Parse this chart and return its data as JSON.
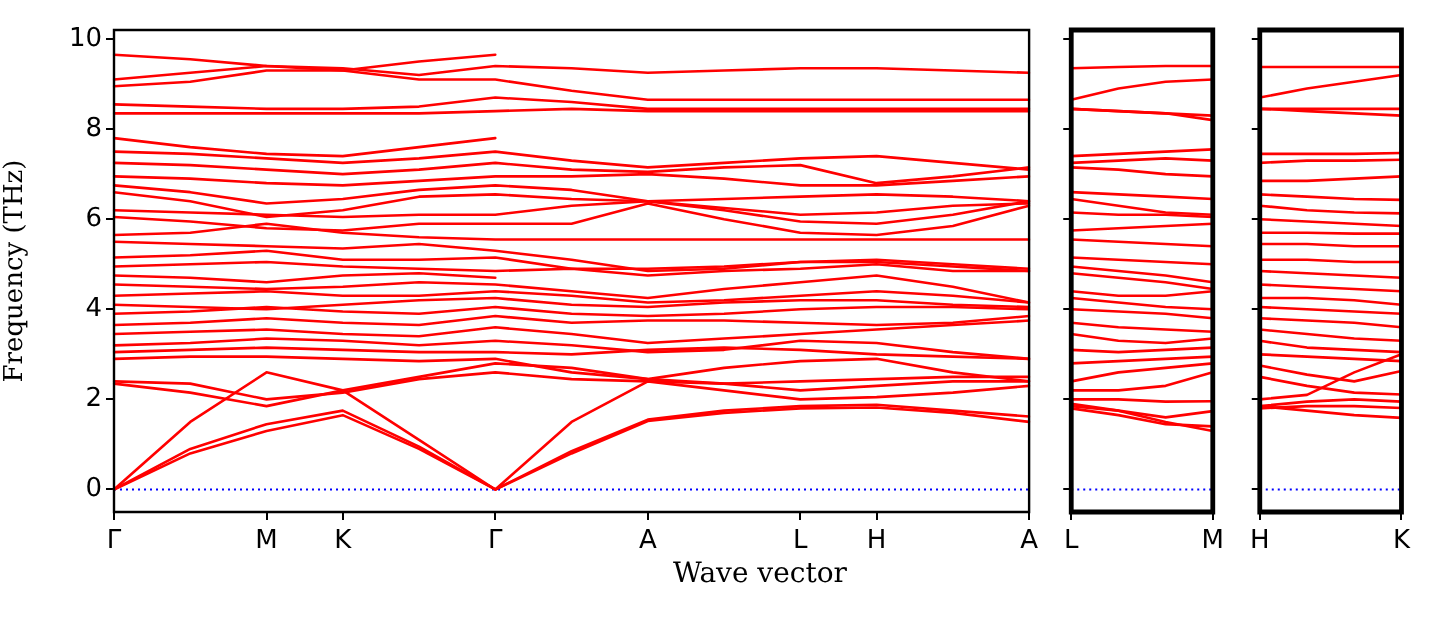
{
  "chart_data": [
    {
      "type": "line",
      "ylabel": "Frequency (THz)",
      "xlabel": "Wave vector",
      "marker": "none",
      "categories": [
        "Γ",
        null,
        "M",
        "K",
        null,
        "Γ",
        null,
        "A",
        null,
        "L",
        "H",
        null,
        "A"
      ],
      "ylim": [
        -0.5,
        10.2
      ],
      "yticks": [
        0,
        2,
        4,
        6,
        8,
        10
      ],
      "ref_lines": [
        {
          "axis": "y",
          "value": 0,
          "color": "#0000ff",
          "line_style": "dotted"
        }
      ],
      "series": [
        {
          "color": "#ff0000",
          "values": [
            0,
            0.8,
            1.3,
            1.65,
            0.9,
            0,
            0.8,
            1.52,
            1.7,
            1.8,
            1.82,
            1.7,
            1.5
          ]
        },
        {
          "color": "#ff0000",
          "values": [
            0,
            0.9,
            1.45,
            1.75,
            0.95,
            0,
            0.85,
            1.55,
            1.75,
            1.85,
            1.88,
            1.75,
            1.62
          ]
        },
        {
          "color": "#ff0000",
          "values": [
            0,
            1.5,
            2.6,
            2.2,
            1.1,
            0,
            1.5,
            2.4,
            2.35,
            2.2,
            2.3,
            2.4,
            2.4
          ]
        },
        {
          "color": "#ff0000",
          "values": [
            2.4,
            2.35,
            2.0,
            2.15,
            2.45,
            2.6,
            2.45,
            2.4,
            2.2,
            2.0,
            2.05,
            2.15,
            2.3
          ]
        },
        {
          "color": "#ff0000",
          "values": [
            2.35,
            2.15,
            1.85,
            2.2,
            2.5,
            2.8,
            2.7,
            2.45,
            2.35,
            2.4,
            2.45,
            2.5,
            2.5
          ]
        },
        {
          "color": "#ff0000",
          "values": [
            2.9,
            2.95,
            2.95,
            2.9,
            2.85,
            2.9,
            2.6,
            2.45,
            2.7,
            2.85,
            2.9,
            2.6,
            2.4
          ]
        },
        {
          "color": "#ff0000",
          "values": [
            3.05,
            3.1,
            3.15,
            3.1,
            3.05,
            3.05,
            3.0,
            3.1,
            3.15,
            3.1,
            3.0,
            2.95,
            2.9
          ]
        },
        {
          "color": "#ff0000",
          "values": [
            3.2,
            3.25,
            3.35,
            3.3,
            3.2,
            3.3,
            3.2,
            3.05,
            3.1,
            3.3,
            3.25,
            3.05,
            2.9
          ]
        },
        {
          "color": "#ff0000",
          "values": [
            3.45,
            3.5,
            3.55,
            3.45,
            3.4,
            3.6,
            3.45,
            3.25,
            3.35,
            3.45,
            3.55,
            3.65,
            3.75
          ]
        },
        {
          "color": "#ff0000",
          "values": [
            3.65,
            3.7,
            3.8,
            3.7,
            3.65,
            3.85,
            3.7,
            3.75,
            3.75,
            3.7,
            3.65,
            3.7,
            3.85
          ]
        },
        {
          "color": "#ff0000",
          "values": [
            3.9,
            3.95,
            4.05,
            3.95,
            3.9,
            4.05,
            3.9,
            3.85,
            3.9,
            4.0,
            4.05,
            4.05,
            4.0
          ]
        },
        {
          "color": "#ff0000",
          "values": [
            4.1,
            4.05,
            4.0,
            4.1,
            4.2,
            4.25,
            4.1,
            4.05,
            4.15,
            4.2,
            4.2,
            4.1,
            4.05
          ]
        },
        {
          "color": "#ff0000",
          "values": [
            4.3,
            4.35,
            4.4,
            4.3,
            4.3,
            4.4,
            4.3,
            4.15,
            4.2,
            4.3,
            4.4,
            4.3,
            4.15
          ]
        },
        {
          "color": "#ff0000",
          "values": [
            4.55,
            4.5,
            4.45,
            4.5,
            4.6,
            4.55,
            4.4,
            4.25,
            4.45,
            4.6,
            4.75,
            4.5,
            4.15
          ]
        },
        {
          "color": "#ff0000",
          "values": [
            4.75,
            4.7,
            4.6,
            4.75,
            4.8,
            4.7,
            null,
            null,
            null,
            null,
            null,
            null,
            null
          ]
        },
        {
          "color": "#ff0000",
          "values": [
            4.95,
            5.0,
            5.05,
            4.95,
            4.9,
            4.85,
            4.9,
            4.75,
            4.85,
            4.9,
            5.0,
            4.85,
            4.85
          ]
        },
        {
          "color": "#ff0000",
          "values": [
            5.15,
            5.2,
            5.3,
            5.1,
            5.1,
            5.15,
            4.9,
            4.9,
            4.95,
            5.05,
            5.1,
            5.0,
            4.9
          ]
        },
        {
          "color": "#ff0000",
          "values": [
            5.5,
            5.45,
            5.4,
            5.35,
            5.45,
            5.3,
            5.1,
            4.85,
            4.9,
            5.05,
            5.05,
            4.95,
            4.85
          ]
        },
        {
          "color": "#ff0000",
          "values": [
            5.65,
            5.7,
            5.9,
            5.7,
            5.6,
            5.55,
            5.55,
            5.55,
            5.55,
            5.55,
            5.55,
            5.55,
            5.55
          ]
        },
        {
          "color": "#ff0000",
          "values": [
            6.05,
            5.95,
            5.8,
            5.75,
            5.9,
            5.9,
            5.9,
            6.35,
            6.0,
            5.7,
            5.65,
            5.85,
            6.3
          ]
        },
        {
          "color": "#ff0000",
          "values": [
            6.2,
            6.15,
            6.1,
            6.05,
            6.1,
            6.1,
            6.3,
            6.4,
            6.2,
            5.95,
            5.9,
            6.1,
            6.4
          ]
        },
        {
          "color": "#ff0000",
          "values": [
            6.6,
            6.4,
            6.05,
            6.2,
            6.5,
            6.55,
            6.45,
            6.4,
            6.25,
            6.1,
            6.15,
            6.3,
            6.35
          ]
        },
        {
          "color": "#ff0000",
          "values": [
            6.75,
            6.6,
            6.35,
            6.45,
            6.65,
            6.75,
            6.65,
            6.4,
            6.45,
            6.5,
            6.55,
            6.5,
            6.4
          ]
        },
        {
          "color": "#ff0000",
          "values": [
            6.95,
            6.9,
            6.8,
            6.75,
            6.85,
            6.95,
            6.95,
            7.0,
            6.9,
            6.75,
            6.75,
            6.85,
            6.95
          ]
        },
        {
          "color": "#ff0000",
          "values": [
            7.25,
            7.2,
            7.1,
            7.0,
            7.1,
            7.25,
            7.1,
            7.05,
            7.15,
            7.2,
            6.8,
            6.95,
            7.15
          ]
        },
        {
          "color": "#ff0000",
          "values": [
            7.5,
            7.45,
            7.35,
            7.25,
            7.35,
            7.5,
            7.3,
            7.15,
            7.25,
            7.35,
            7.4,
            7.25,
            7.1
          ]
        },
        {
          "color": "#ff0000",
          "values": [
            7.8,
            7.6,
            7.45,
            7.4,
            7.6,
            7.8,
            null,
            null,
            null,
            null,
            null,
            null,
            null
          ]
        },
        {
          "color": "#ff0000",
          "values": [
            8.35,
            8.35,
            8.35,
            8.35,
            8.35,
            8.4,
            8.45,
            8.4,
            8.4,
            8.4,
            8.4,
            8.4,
            8.4
          ]
        },
        {
          "color": "#ff0000",
          "values": [
            8.55,
            8.5,
            8.45,
            8.45,
            8.5,
            8.7,
            8.6,
            8.45,
            8.45,
            8.45,
            8.45,
            8.45,
            8.45
          ]
        },
        {
          "color": "#ff0000",
          "values": [
            8.95,
            9.05,
            9.3,
            9.3,
            9.1,
            9.1,
            8.85,
            8.65,
            8.65,
            8.65,
            8.65,
            8.65,
            8.65
          ]
        },
        {
          "color": "#ff0000",
          "values": [
            9.1,
            9.25,
            9.4,
            9.35,
            9.2,
            9.4,
            9.35,
            9.25,
            9.3,
            9.35,
            9.35,
            9.3,
            9.25
          ]
        },
        {
          "color": "#ff0000",
          "values": [
            9.65,
            9.55,
            9.4,
            9.3,
            9.5,
            9.65,
            null,
            null,
            null,
            null,
            null,
            null,
            null
          ]
        }
      ]
    },
    {
      "type": "line",
      "marker": "none",
      "tick_labels": "x",
      "categories": [
        "L",
        null,
        null,
        "M"
      ],
      "ylim": [
        -0.5,
        10.2
      ],
      "yticks": [
        0,
        2,
        4,
        6,
        8,
        10
      ],
      "ref_lines": [
        {
          "axis": "y",
          "value": 0,
          "color": "#0000ff",
          "line_style": "dotted"
        }
      ],
      "series": [
        {
          "color": "#ff0000",
          "values": [
            9.35,
            9.38,
            9.4,
            9.4
          ]
        },
        {
          "color": "#ff0000",
          "values": [
            8.65,
            8.9,
            9.05,
            9.1
          ]
        },
        {
          "color": "#ff0000",
          "values": [
            8.45,
            8.4,
            8.35,
            8.3
          ]
        },
        {
          "color": "#ff0000",
          "values": [
            8.45,
            8.4,
            8.35,
            8.2
          ]
        },
        {
          "color": "#ff0000",
          "values": [
            7.4,
            7.45,
            7.5,
            7.55
          ]
        },
        {
          "color": "#ff0000",
          "values": [
            7.25,
            7.3,
            7.35,
            7.3
          ]
        },
        {
          "color": "#ff0000",
          "values": [
            7.15,
            7.1,
            7.0,
            6.95
          ]
        },
        {
          "color": "#ff0000",
          "values": [
            6.6,
            6.55,
            6.5,
            6.45
          ]
        },
        {
          "color": "#ff0000",
          "values": [
            6.45,
            6.3,
            6.15,
            6.1
          ]
        },
        {
          "color": "#ff0000",
          "values": [
            6.15,
            6.1,
            6.1,
            6.05
          ]
        },
        {
          "color": "#ff0000",
          "values": [
            5.75,
            5.8,
            5.85,
            5.9
          ]
        },
        {
          "color": "#ff0000",
          "values": [
            5.55,
            5.5,
            5.45,
            5.4
          ]
        },
        {
          "color": "#ff0000",
          "values": [
            5.15,
            5.1,
            5.05,
            5.0
          ]
        },
        {
          "color": "#ff0000",
          "values": [
            4.95,
            4.85,
            4.75,
            4.6
          ]
        },
        {
          "color": "#ff0000",
          "values": [
            4.8,
            4.7,
            4.6,
            4.45
          ]
        },
        {
          "color": "#ff0000",
          "values": [
            4.4,
            4.3,
            4.3,
            4.4
          ]
        },
        {
          "color": "#ff0000",
          "values": [
            4.25,
            4.15,
            4.05,
            4.0
          ]
        },
        {
          "color": "#ff0000",
          "values": [
            4.0,
            3.95,
            3.9,
            3.8
          ]
        },
        {
          "color": "#ff0000",
          "values": [
            3.7,
            3.6,
            3.55,
            3.5
          ]
        },
        {
          "color": "#ff0000",
          "values": [
            3.45,
            3.3,
            3.25,
            3.35
          ]
        },
        {
          "color": "#ff0000",
          "values": [
            3.1,
            3.05,
            3.1,
            3.15
          ]
        },
        {
          "color": "#ff0000",
          "values": [
            2.8,
            2.85,
            2.9,
            2.95
          ]
        },
        {
          "color": "#ff0000",
          "values": [
            2.4,
            2.6,
            2.7,
            2.8
          ]
        },
        {
          "color": "#ff0000",
          "values": [
            2.2,
            2.2,
            2.3,
            2.6
          ]
        },
        {
          "color": "#ff0000",
          "values": [
            2.0,
            2.0,
            1.95,
            1.96
          ]
        },
        {
          "color": "#ff0000",
          "values": [
            1.9,
            1.75,
            1.6,
            1.74
          ]
        },
        {
          "color": "#ff0000",
          "values": [
            1.85,
            1.75,
            1.5,
            1.3
          ]
        },
        {
          "color": "#ff0000",
          "values": [
            1.8,
            1.65,
            1.45,
            1.4
          ]
        }
      ]
    },
    {
      "type": "line",
      "marker": "none",
      "tick_labels": "x",
      "categories": [
        "H",
        null,
        null,
        "K"
      ],
      "ylim": [
        -0.5,
        10.2
      ],
      "yticks": [
        0,
        2,
        4,
        6,
        8,
        10
      ],
      "ref_lines": [
        {
          "axis": "y",
          "value": 0,
          "color": "#0000ff",
          "line_style": "dotted"
        }
      ],
      "series": [
        {
          "color": "#ff0000",
          "values": [
            9.38,
            9.38,
            9.38,
            9.38
          ]
        },
        {
          "color": "#ff0000",
          "values": [
            8.7,
            8.9,
            9.05,
            9.2
          ]
        },
        {
          "color": "#ff0000",
          "values": [
            8.45,
            8.45,
            8.45,
            8.45
          ]
        },
        {
          "color": "#ff0000",
          "values": [
            8.45,
            8.4,
            8.35,
            8.3
          ]
        },
        {
          "color": "#ff0000",
          "values": [
            7.45,
            7.45,
            7.45,
            7.47
          ]
        },
        {
          "color": "#ff0000",
          "values": [
            7.25,
            7.3,
            7.3,
            7.32
          ]
        },
        {
          "color": "#ff0000",
          "values": [
            6.85,
            6.85,
            6.9,
            6.95
          ]
        },
        {
          "color": "#ff0000",
          "values": [
            6.55,
            6.5,
            6.45,
            6.43
          ]
        },
        {
          "color": "#ff0000",
          "values": [
            6.3,
            6.2,
            6.15,
            6.13
          ]
        },
        {
          "color": "#ff0000",
          "values": [
            6.0,
            5.95,
            5.9,
            5.85
          ]
        },
        {
          "color": "#ff0000",
          "values": [
            5.7,
            5.7,
            5.68,
            5.68
          ]
        },
        {
          "color": "#ff0000",
          "values": [
            5.45,
            5.45,
            5.4,
            5.4
          ]
        },
        {
          "color": "#ff0000",
          "values": [
            5.1,
            5.1,
            5.05,
            5.05
          ]
        },
        {
          "color": "#ff0000",
          "values": [
            4.85,
            4.8,
            4.75,
            4.7
          ]
        },
        {
          "color": "#ff0000",
          "values": [
            4.55,
            4.5,
            4.45,
            4.4
          ]
        },
        {
          "color": "#ff0000",
          "values": [
            4.25,
            4.25,
            4.2,
            4.1
          ]
        },
        {
          "color": "#ff0000",
          "values": [
            4.05,
            4.0,
            3.95,
            3.9
          ]
        },
        {
          "color": "#ff0000",
          "values": [
            3.8,
            3.75,
            3.7,
            3.6
          ]
        },
        {
          "color": "#ff0000",
          "values": [
            3.55,
            3.45,
            3.35,
            3.3
          ]
        },
        {
          "color": "#ff0000",
          "values": [
            3.3,
            3.15,
            3.1,
            3.05
          ]
        },
        {
          "color": "#ff0000",
          "values": [
            3.0,
            2.95,
            2.9,
            2.85
          ]
        },
        {
          "color": "#ff0000",
          "values": [
            2.75,
            2.55,
            2.4,
            2.63
          ]
        },
        {
          "color": "#ff0000",
          "values": [
            2.5,
            2.3,
            2.15,
            2.11
          ]
        },
        {
          "color": "#ff0000",
          "values": [
            2.0,
            2.1,
            2.6,
            3.0
          ]
        },
        {
          "color": "#ff0000",
          "values": [
            1.85,
            1.95,
            2.0,
            1.95
          ]
        },
        {
          "color": "#ff0000",
          "values": [
            1.8,
            1.85,
            1.85,
            1.81
          ]
        },
        {
          "color": "#ff0000",
          "values": [
            1.85,
            1.75,
            1.65,
            1.59
          ]
        }
      ]
    }
  ]
}
